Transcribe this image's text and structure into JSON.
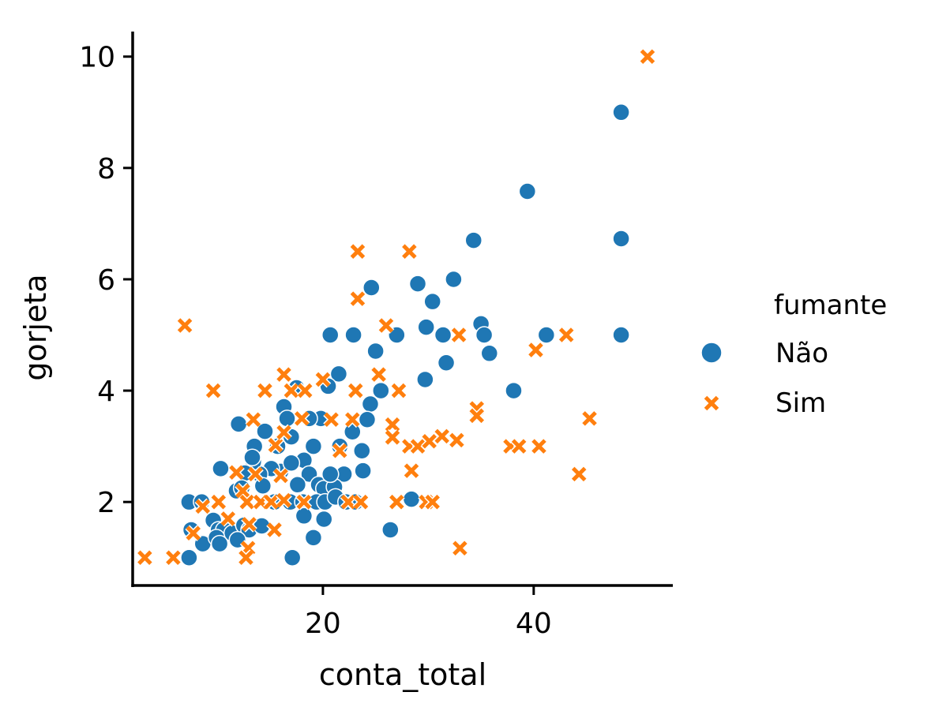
{
  "chart_data": {
    "type": "scatter",
    "title": "",
    "xlabel": "conta_total",
    "ylabel": "gorjeta",
    "xlim": [
      1.95,
      53.2
    ],
    "ylim": [
      0.5,
      10.45
    ],
    "xticks": [
      20,
      40
    ],
    "yticks": [
      2,
      4,
      6,
      8,
      10
    ],
    "grid": false,
    "legend": {
      "title": "fumante",
      "placement": "right"
    },
    "series": [
      {
        "name": "Não",
        "marker": "circle",
        "color": "#1f77b4",
        "points": [
          [
            48.3,
            9.0
          ],
          [
            39.4,
            7.58
          ],
          [
            48.3,
            6.73
          ],
          [
            34.3,
            6.7
          ],
          [
            32.4,
            6.0
          ],
          [
            29.0,
            5.92
          ],
          [
            24.6,
            5.85
          ],
          [
            30.4,
            5.6
          ],
          [
            29.8,
            5.14
          ],
          [
            35.0,
            5.2
          ],
          [
            35.3,
            5.0
          ],
          [
            31.4,
            5.0
          ],
          [
            27.0,
            5.0
          ],
          [
            20.7,
            5.0
          ],
          [
            22.9,
            5.0
          ],
          [
            41.2,
            5.0
          ],
          [
            48.3,
            5.0
          ],
          [
            35.8,
            4.67
          ],
          [
            25.0,
            4.71
          ],
          [
            31.7,
            4.5
          ],
          [
            29.7,
            4.2
          ],
          [
            38.1,
            4.0
          ],
          [
            25.5,
            4.0
          ],
          [
            21.5,
            4.3
          ],
          [
            20.5,
            4.08
          ],
          [
            17.5,
            4.05
          ],
          [
            24.5,
            3.76
          ],
          [
            24.2,
            3.48
          ],
          [
            22.8,
            3.26
          ],
          [
            19.8,
            3.5
          ],
          [
            18.7,
            3.5
          ],
          [
            16.3,
            3.71
          ],
          [
            14.5,
            3.27
          ],
          [
            12.0,
            3.4
          ],
          [
            13.5,
            3.0
          ],
          [
            17.0,
            3.17
          ],
          [
            19.1,
            3.0
          ],
          [
            21.6,
            3.0
          ],
          [
            22.0,
            2.5
          ],
          [
            23.7,
            2.92
          ],
          [
            23.8,
            2.56
          ],
          [
            18.2,
            2.75
          ],
          [
            18.7,
            2.5
          ],
          [
            19.6,
            2.31
          ],
          [
            20.1,
            2.24
          ],
          [
            21.1,
            2.27
          ],
          [
            20.7,
            2.5
          ],
          [
            16.0,
            2.55
          ],
          [
            15.1,
            2.6
          ],
          [
            14.0,
            2.5
          ],
          [
            13.4,
            2.72
          ],
          [
            12.6,
            2.52
          ],
          [
            11.8,
            2.2
          ],
          [
            10.3,
            2.6
          ],
          [
            12.3,
            2.25
          ],
          [
            14.3,
            2.29
          ],
          [
            15.4,
            2.0
          ],
          [
            17.6,
            2.31
          ],
          [
            16.9,
            2.0
          ],
          [
            18.1,
            2.0
          ],
          [
            19.4,
            2.0
          ],
          [
            20.2,
            2.0
          ],
          [
            21.2,
            2.09
          ],
          [
            22.2,
            2.0
          ],
          [
            23.1,
            2.0
          ],
          [
            28.4,
            2.05
          ],
          [
            7.3,
            2.0
          ],
          [
            8.5,
            2.0
          ],
          [
            9.6,
            1.67
          ],
          [
            10.1,
            1.5
          ],
          [
            10.6,
            1.5
          ],
          [
            11.4,
            1.44
          ],
          [
            12.5,
            1.58
          ],
          [
            13.0,
            1.5
          ],
          [
            14.2,
            1.57
          ],
          [
            8.6,
            1.25
          ],
          [
            9.9,
            1.36
          ],
          [
            10.2,
            1.25
          ],
          [
            11.9,
            1.32
          ],
          [
            7.5,
            1.5
          ],
          [
            18.2,
            1.75
          ],
          [
            19.1,
            1.36
          ],
          [
            20.1,
            1.69
          ],
          [
            26.4,
            1.5
          ],
          [
            7.3,
            1.0
          ],
          [
            17.1,
            1.0
          ],
          [
            16.6,
            3.5
          ],
          [
            13.3,
            2.8
          ],
          [
            15.7,
            3.0
          ],
          [
            17.0,
            2.7
          ]
        ]
      },
      {
        "name": "Sim",
        "marker": "x",
        "color": "#ff7f0e",
        "points": [
          [
            50.8,
            10.0
          ],
          [
            23.3,
            6.5
          ],
          [
            28.2,
            6.5
          ],
          [
            23.3,
            5.65
          ],
          [
            26.0,
            5.17
          ],
          [
            6.9,
            5.17
          ],
          [
            32.9,
            5.0
          ],
          [
            43.1,
            5.0
          ],
          [
            40.2,
            4.73
          ],
          [
            9.6,
            4.0
          ],
          [
            14.5,
            4.0
          ],
          [
            17.0,
            4.0
          ],
          [
            18.3,
            4.0
          ],
          [
            23.1,
            4.0
          ],
          [
            27.2,
            4.0
          ],
          [
            16.3,
            4.29
          ],
          [
            20.0,
            4.2
          ],
          [
            25.3,
            4.29
          ],
          [
            34.6,
            3.68
          ],
          [
            34.6,
            3.55
          ],
          [
            45.3,
            3.5
          ],
          [
            13.4,
            3.48
          ],
          [
            18.0,
            3.5
          ],
          [
            20.8,
            3.48
          ],
          [
            22.8,
            3.48
          ],
          [
            26.6,
            3.39
          ],
          [
            26.6,
            3.16
          ],
          [
            28.2,
            3.0
          ],
          [
            29.0,
            3.0
          ],
          [
            30.1,
            3.09
          ],
          [
            31.3,
            3.18
          ],
          [
            32.7,
            3.11
          ],
          [
            37.8,
            3.0
          ],
          [
            38.6,
            3.0
          ],
          [
            40.5,
            3.0
          ],
          [
            15.5,
            3.02
          ],
          [
            16.3,
            3.25
          ],
          [
            21.6,
            2.92
          ],
          [
            28.4,
            2.56
          ],
          [
            44.3,
            2.5
          ],
          [
            11.8,
            2.53
          ],
          [
            13.6,
            2.5
          ],
          [
            16.0,
            2.47
          ],
          [
            12.4,
            2.2
          ],
          [
            12.8,
            2.0
          ],
          [
            14.1,
            2.0
          ],
          [
            15.1,
            2.0
          ],
          [
            16.3,
            2.03
          ],
          [
            18.2,
            2.0
          ],
          [
            22.4,
            2.0
          ],
          [
            23.6,
            2.0
          ],
          [
            27.0,
            2.0
          ],
          [
            29.8,
            2.0
          ],
          [
            30.4,
            2.0
          ],
          [
            8.6,
            1.92
          ],
          [
            10.1,
            2.0
          ],
          [
            11.0,
            1.7
          ],
          [
            13.0,
            1.6
          ],
          [
            15.4,
            1.5
          ],
          [
            7.7,
            1.44
          ],
          [
            12.9,
            1.17
          ],
          [
            12.7,
            1.0
          ],
          [
            33.0,
            1.17
          ],
          [
            3.1,
            1.0
          ],
          [
            5.8,
            1.0
          ]
        ]
      }
    ]
  }
}
